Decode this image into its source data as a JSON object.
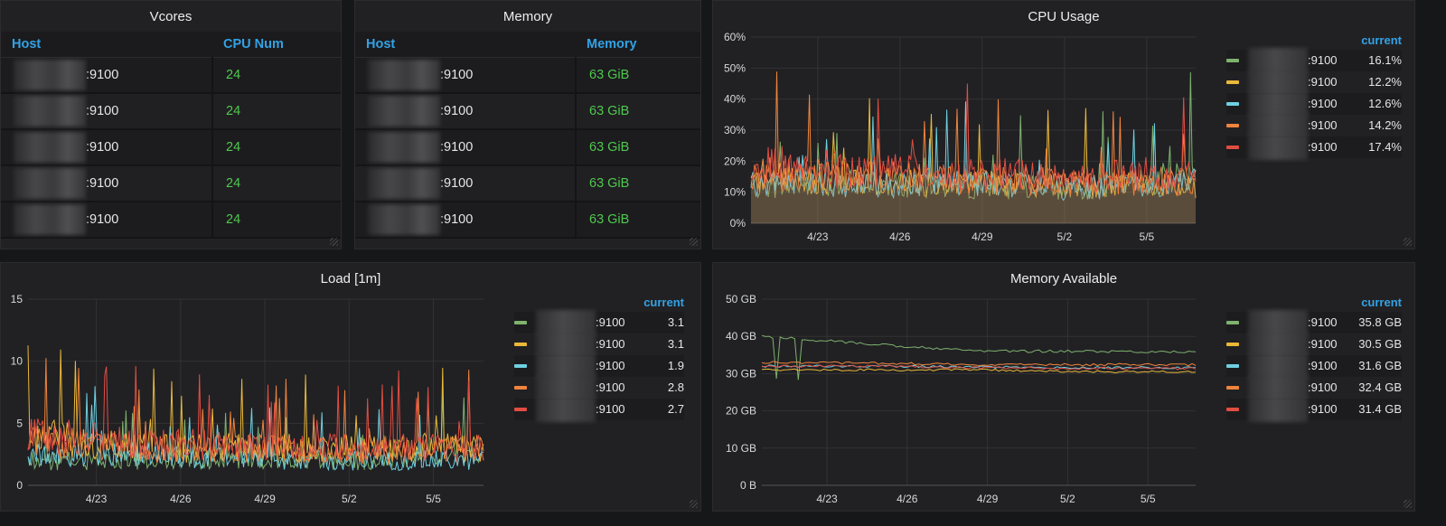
{
  "colors": {
    "green": "#7eb26d",
    "yellow": "#eab839",
    "cyan": "#6ed0e0",
    "orange": "#ef843c",
    "red": "#e24d42",
    "accent": "#33a2e5",
    "value_green": "#4fc84f"
  },
  "vcores": {
    "title": "Vcores",
    "headers": {
      "host": "Host",
      "num": "CPU Num"
    },
    "rows": [
      {
        "port": ":9100",
        "value": "24"
      },
      {
        "port": ":9100",
        "value": "24"
      },
      {
        "port": ":9100",
        "value": "24"
      },
      {
        "port": ":9100",
        "value": "24"
      },
      {
        "port": ":9100",
        "value": "24"
      }
    ]
  },
  "memory": {
    "title": "Memory",
    "headers": {
      "host": "Host",
      "mem": "Memory"
    },
    "rows": [
      {
        "port": ":9100",
        "value": "63 GiB"
      },
      {
        "port": ":9100",
        "value": "63 GiB"
      },
      {
        "port": ":9100",
        "value": "63 GiB"
      },
      {
        "port": ":9100",
        "value": "63 GiB"
      },
      {
        "port": ":9100",
        "value": "63 GiB"
      }
    ]
  },
  "cpu": {
    "title": "CPU Usage",
    "yticks": [
      "60%",
      "50%",
      "40%",
      "30%",
      "20%",
      "10%",
      "0%"
    ],
    "xticks": [
      "4/23",
      "4/26",
      "4/29",
      "5/2",
      "5/5"
    ],
    "legend_header": "current",
    "legend": [
      {
        "port": ":9100",
        "value": "16.1%",
        "color": "#7eb26d"
      },
      {
        "port": ":9100",
        "value": "12.2%",
        "color": "#eab839"
      },
      {
        "port": ":9100",
        "value": "12.6%",
        "color": "#6ed0e0"
      },
      {
        "port": ":9100",
        "value": "14.2%",
        "color": "#ef843c"
      },
      {
        "port": ":9100",
        "value": "17.4%",
        "color": "#e24d42"
      }
    ]
  },
  "load": {
    "title": "Load [1m]",
    "yticks": [
      "15",
      "10",
      "5",
      "0"
    ],
    "xticks": [
      "4/23",
      "4/26",
      "4/29",
      "5/2",
      "5/5"
    ],
    "legend_header": "current",
    "legend": [
      {
        "port": ":9100",
        "value": "3.1",
        "color": "#7eb26d"
      },
      {
        "port": ":9100",
        "value": "3.1",
        "color": "#eab839"
      },
      {
        "port": ":9100",
        "value": "1.9",
        "color": "#6ed0e0"
      },
      {
        "port": ":9100",
        "value": "2.8",
        "color": "#ef843c"
      },
      {
        "port": ":9100",
        "value": "2.7",
        "color": "#e24d42"
      }
    ]
  },
  "memavail": {
    "title": "Memory Available",
    "yticks": [
      "50 GB",
      "40 GB",
      "30 GB",
      "20 GB",
      "10 GB",
      "0 B"
    ],
    "xticks": [
      "4/23",
      "4/26",
      "4/29",
      "5/2",
      "5/5"
    ],
    "legend_header": "current",
    "legend": [
      {
        "port": ":9100",
        "value": "35.8 GB",
        "color": "#7eb26d"
      },
      {
        "port": ":9100",
        "value": "30.5 GB",
        "color": "#eab839"
      },
      {
        "port": ":9100",
        "value": "31.6 GB",
        "color": "#6ed0e0"
      },
      {
        "port": ":9100",
        "value": "32.4 GB",
        "color": "#ef843c"
      },
      {
        "port": ":9100",
        "value": "31.4 GB",
        "color": "#e24d42"
      }
    ]
  },
  "chart_data": [
    {
      "type": "area",
      "title": "CPU Usage",
      "ylim": [
        0,
        60
      ],
      "x": [
        "4/23",
        "4/26",
        "4/29",
        "5/2",
        "5/5"
      ],
      "series": [
        {
          "values": [
            12,
            13,
            12,
            11,
            16
          ]
        },
        {
          "values": [
            15,
            14,
            13,
            12,
            12
          ]
        },
        {
          "values": [
            13,
            12,
            13,
            11,
            13
          ]
        },
        {
          "values": [
            16,
            15,
            14,
            13,
            14
          ]
        },
        {
          "values": [
            19,
            17,
            16,
            15,
            17
          ]
        }
      ]
    },
    {
      "type": "line",
      "title": "Load [1m]",
      "ylim": [
        0,
        15
      ],
      "x": [
        "4/23",
        "4/26",
        "4/29",
        "5/2",
        "5/5"
      ],
      "series": [
        {
          "values": [
            2,
            2,
            2,
            2,
            3
          ]
        },
        {
          "values": [
            4,
            3,
            3,
            3,
            3
          ]
        },
        {
          "values": [
            2.5,
            2.5,
            2,
            2,
            2
          ]
        },
        {
          "values": [
            3.5,
            3,
            3,
            2.8,
            3
          ]
        },
        {
          "values": [
            4,
            3.5,
            3,
            3,
            3
          ]
        }
      ]
    },
    {
      "type": "line",
      "title": "Memory Available",
      "ylim": [
        0,
        50
      ],
      "x": [
        "4/23",
        "4/26",
        "4/29",
        "5/2",
        "5/5"
      ],
      "series": [
        {
          "values": [
            40,
            38,
            36,
            36,
            35.8
          ]
        },
        {
          "values": [
            31,
            31,
            31,
            30.5,
            30.5
          ]
        },
        {
          "values": [
            32,
            32,
            31.8,
            31.6,
            31.6
          ]
        },
        {
          "values": [
            33,
            32.8,
            32.5,
            32.4,
            32.4
          ]
        },
        {
          "values": [
            32,
            32,
            31.6,
            31.4,
            31.4
          ]
        }
      ]
    }
  ]
}
